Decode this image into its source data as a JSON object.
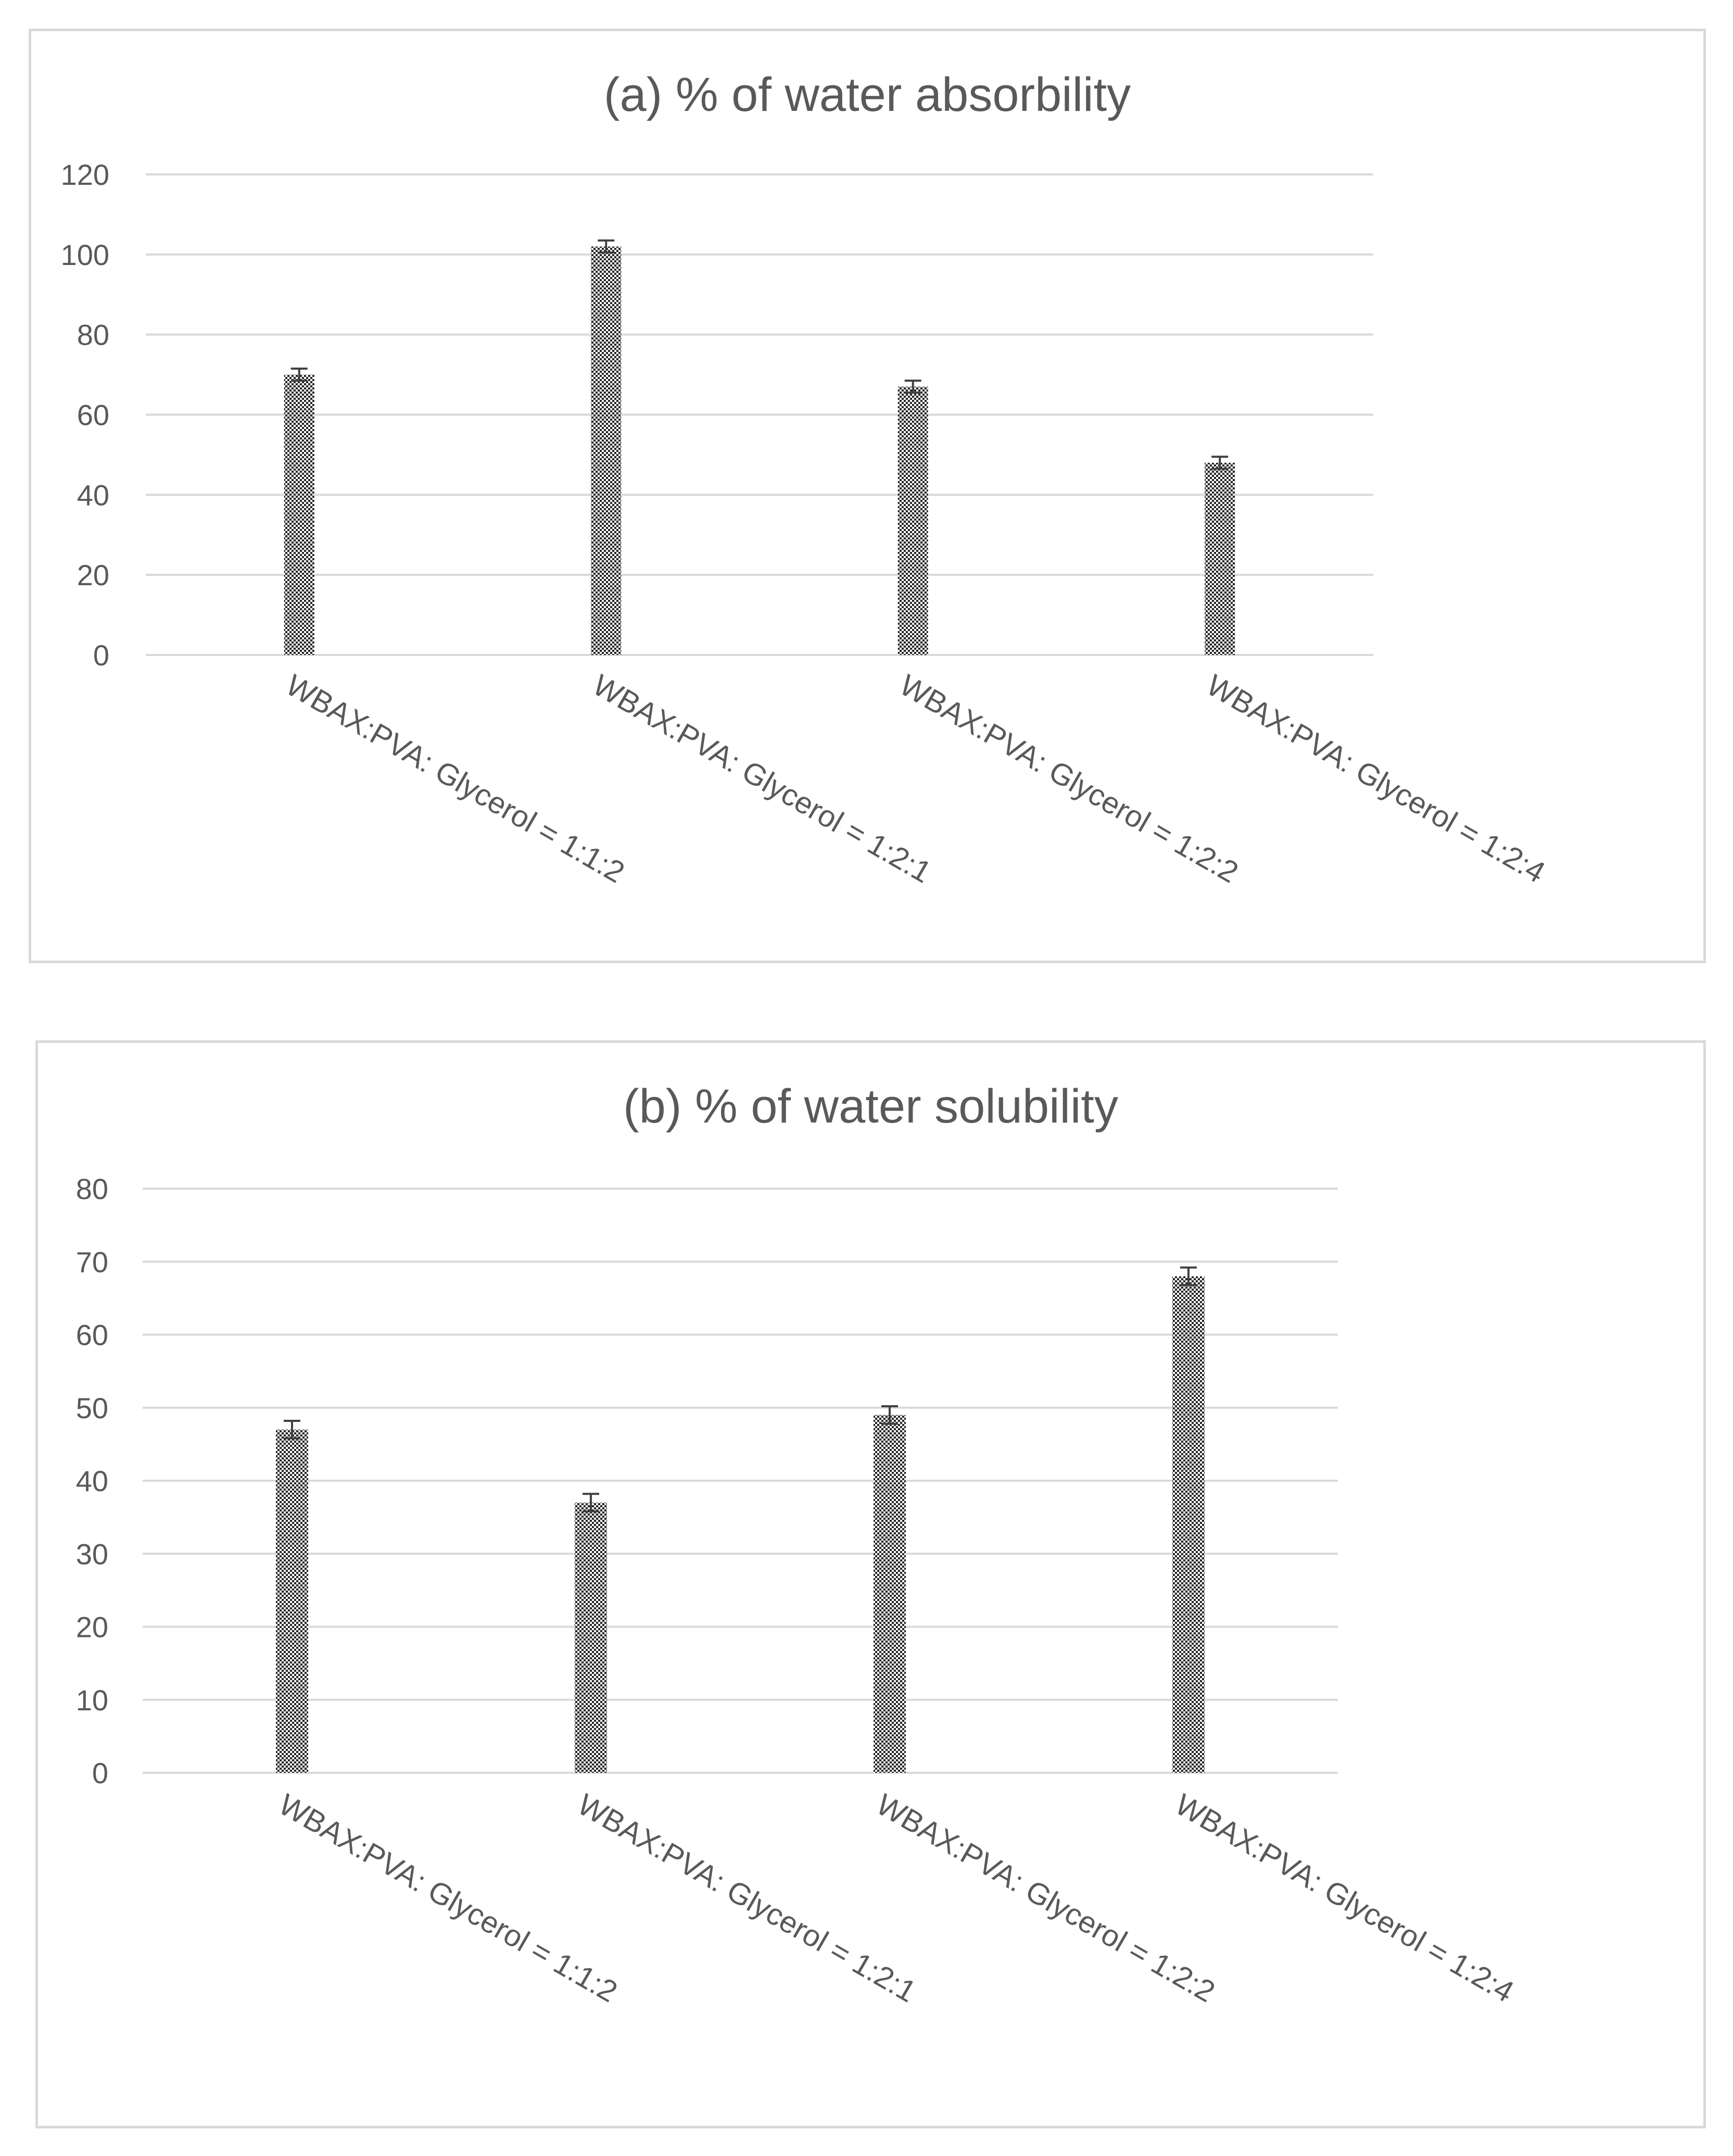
{
  "chart_data": [
    {
      "id": "a",
      "type": "bar",
      "title": "(a) % of water absorbility",
      "categories": [
        "WBAX:PVA: Glycerol = 1:1:2",
        "WBAX:PVA: Glycerol = 1:2:1",
        "WBAX:PVA: Glycerol = 1:2:2",
        "WBAX:PVA: Glycerol = 1:2:4"
      ],
      "values": [
        70,
        102,
        67,
        48
      ],
      "errors": [
        1.5,
        1.5,
        1.5,
        1.5
      ],
      "ylim": [
        0,
        120
      ],
      "yticks": [
        0,
        20,
        40,
        60,
        80,
        100,
        120
      ],
      "xlabel": "",
      "ylabel": "",
      "grid": true,
      "bar_fill": "checkered"
    },
    {
      "id": "b",
      "type": "bar",
      "title": "(b) % of water solubility",
      "categories": [
        "WBAX:PVA: Glycerol = 1:1:2",
        "WBAX:PVA: Glycerol = 1:2:1",
        "WBAX:PVA: Glycerol = 1:2:2",
        "WBAX:PVA: Glycerol = 1:2:4"
      ],
      "values": [
        47,
        37,
        49,
        68
      ],
      "errors": [
        1.2,
        1.2,
        1.2,
        1.2
      ],
      "ylim": [
        0,
        80
      ],
      "yticks": [
        0,
        10,
        20,
        30,
        40,
        50,
        60,
        70,
        80
      ],
      "xlabel": "",
      "ylabel": "",
      "grid": true,
      "bar_fill": "checkered"
    }
  ],
  "colors": {
    "text": "#595959",
    "grid": "#d9d9d9",
    "bar_dark": "#262626",
    "bar_light": "#ffffff",
    "errbar": "#404040"
  }
}
